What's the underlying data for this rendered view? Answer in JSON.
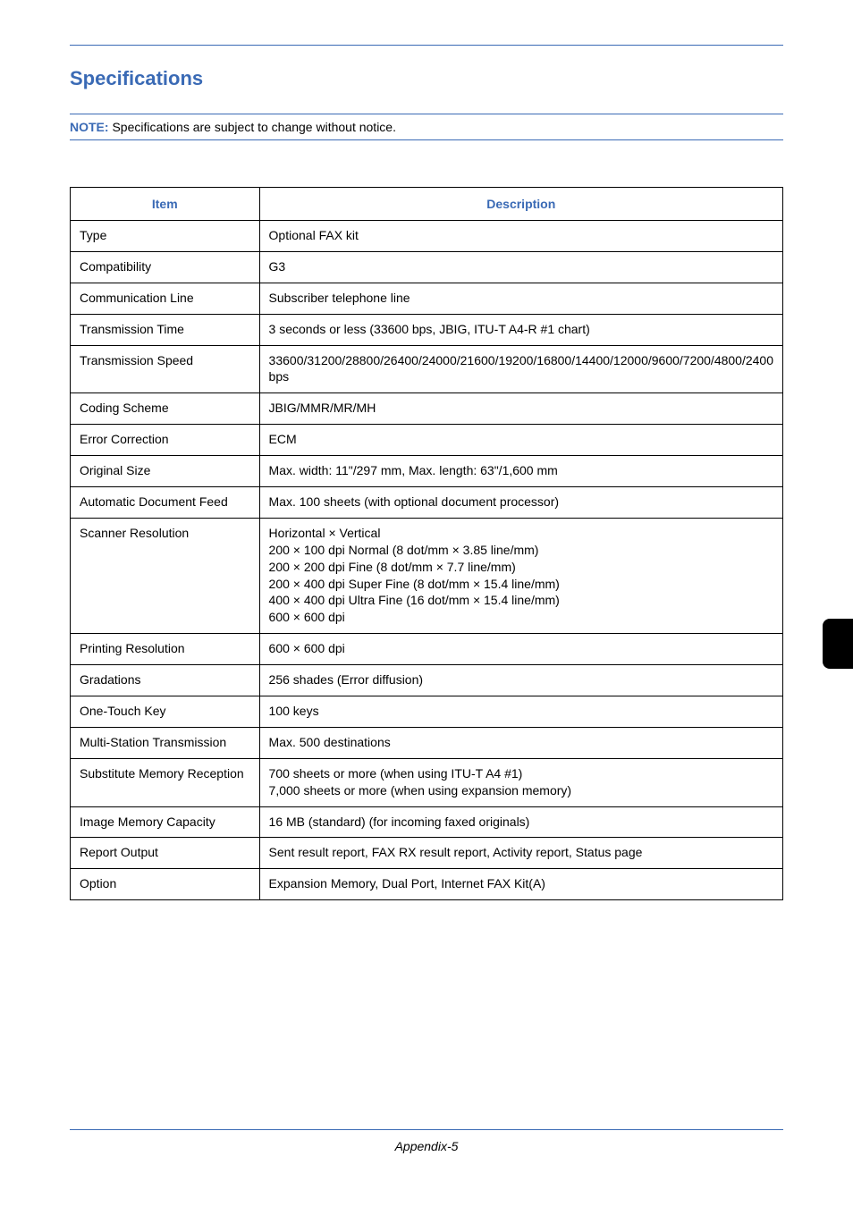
{
  "title": "Specifications",
  "note": {
    "prefix": "NOTE:",
    "text": " Specifications are subject to change without notice."
  },
  "table": {
    "headers": {
      "item": "Item",
      "description": "Description"
    },
    "rows": [
      {
        "item": "Type",
        "desc": "Optional FAX kit"
      },
      {
        "item": "Compatibility",
        "desc": "G3"
      },
      {
        "item": "Communication Line",
        "desc": "Subscriber telephone line"
      },
      {
        "item": "Transmission Time",
        "desc": "3 seconds or less (33600 bps, JBIG, ITU-T A4-R #1 chart)"
      },
      {
        "item": "Transmission Speed",
        "desc": "33600/31200/28800/26400/24000/21600/19200/16800/14400/12000/9600/7200/4800/2400 bps"
      },
      {
        "item": "Coding Scheme",
        "desc": "JBIG/MMR/MR/MH"
      },
      {
        "item": "Error Correction",
        "desc": "ECM"
      },
      {
        "item": "Original Size",
        "desc": "Max. width: 11\"/297 mm, Max. length: 63\"/1,600 mm"
      },
      {
        "item": "Automatic Document Feed",
        "desc": "Max. 100 sheets (with optional document processor)"
      },
      {
        "item": "Scanner Resolution",
        "desc": "Horizontal × Vertical\n200 × 100 dpi Normal (8 dot/mm × 3.85 line/mm)\n200 × 200 dpi Fine (8 dot/mm × 7.7 line/mm)\n200 × 400 dpi Super Fine (8 dot/mm × 15.4 line/mm)\n400 × 400 dpi Ultra Fine (16 dot/mm × 15.4 line/mm)\n600 × 600 dpi"
      },
      {
        "item": "Printing Resolution",
        "desc": "600 × 600 dpi"
      },
      {
        "item": "Gradations",
        "desc": "256 shades (Error diffusion)"
      },
      {
        "item": "One-Touch Key",
        "desc": "100 keys"
      },
      {
        "item": "Multi-Station Transmission",
        "desc": "Max. 500 destinations"
      },
      {
        "item": "Substitute Memory Reception",
        "desc": "700 sheets or more (when using ITU-T A4 #1)\n7,000 sheets or more (when using expansion memory)"
      },
      {
        "item": "Image Memory Capacity",
        "desc": "16 MB (standard) (for incoming faxed originals)"
      },
      {
        "item": "Report Output",
        "desc": "Sent result report, FAX RX result report, Activity report, Status page"
      },
      {
        "item": "Option",
        "desc": "Expansion Memory, Dual Port, Internet FAX Kit(A)"
      }
    ]
  },
  "footer": "Appendix-5"
}
